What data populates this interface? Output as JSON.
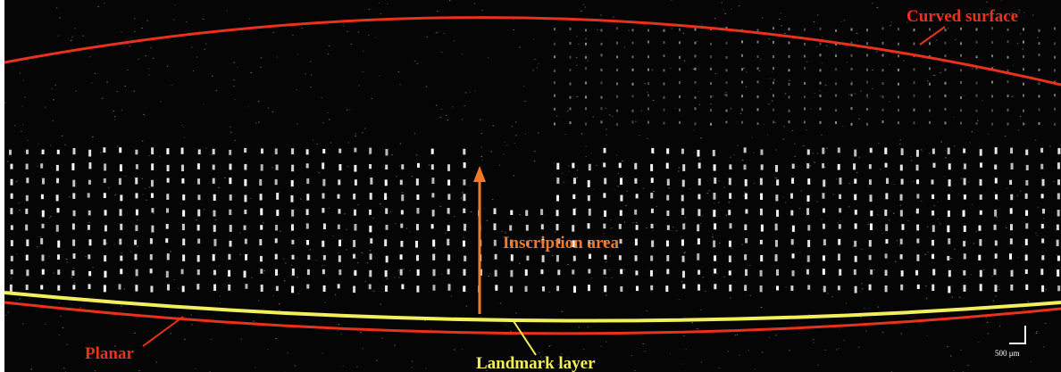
{
  "annotations": {
    "curved_surface": "Curved surface",
    "inscription_area": "Inscription area",
    "planar": "Planar",
    "landmark_layer": "Landmark layer",
    "scale_bar": "500 μm"
  }
}
